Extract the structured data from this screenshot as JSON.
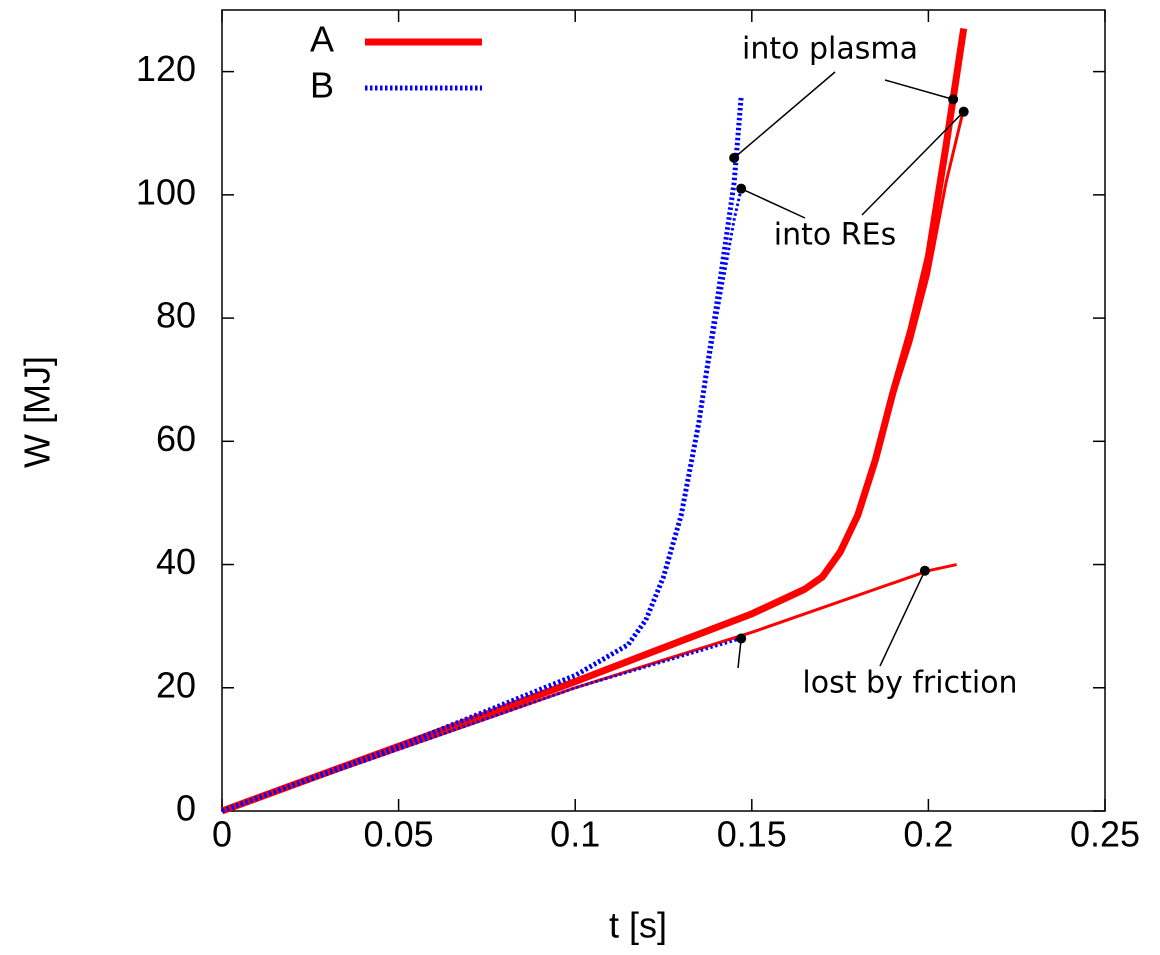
{
  "chart_data": {
    "type": "line",
    "x_label": "t [s]",
    "y_label": "W [MJ]",
    "xlim": [
      0,
      0.25
    ],
    "ylim": [
      0,
      130
    ],
    "xticks": [
      0,
      0.05,
      0.1,
      0.15,
      0.2,
      0.25
    ],
    "yticks": [
      0,
      20,
      40,
      60,
      80,
      100,
      120
    ],
    "legend": "top-left",
    "series": [
      {
        "name": "A",
        "color": "#ff0000",
        "style": "solid",
        "lines": [
          {
            "line_width": 7,
            "x": [
              0,
              0.05,
              0.1,
              0.15,
              0.165,
              0.17,
              0.175,
              0.18,
              0.185,
              0.19,
              0.195,
              0.2,
              0.205,
              0.21
            ],
            "values": [
              0,
              10.5,
              21,
              32,
              36,
              38,
              42,
              48,
              57,
              68,
              78,
              90,
              108,
              127
            ]
          },
          {
            "line_width": 3,
            "x": [
              0,
              0.05,
              0.1,
              0.15,
              0.165,
              0.17,
              0.175,
              0.18,
              0.185,
              0.19,
              0.195,
              0.2,
              0.205,
              0.21
            ],
            "values": [
              0,
              10.5,
              21,
              32,
              36,
              38,
              42,
              48,
              57,
              67,
              76,
              87,
              102,
              114
            ]
          },
          {
            "line_width": 3,
            "x": [
              0,
              0.05,
              0.1,
              0.15,
              0.17,
              0.19,
              0.2,
              0.208
            ],
            "values": [
              0,
              10,
              20,
              29,
              33,
              37,
              39,
              40
            ]
          }
        ]
      },
      {
        "name": "B",
        "color": "#0000ff",
        "style": "dotted",
        "lines": [
          {
            "line_width": 5,
            "x": [
              0,
              0.05,
              0.1,
              0.115,
              0.12,
              0.125,
              0.13,
              0.135,
              0.14,
              0.145,
              0.147
            ],
            "values": [
              0,
              10.5,
              22,
              27,
              31,
              38,
              48,
              63,
              82,
              102,
              116
            ]
          },
          {
            "line_width": 3,
            "x": [
              0,
              0.05,
              0.1,
              0.115,
              0.12,
              0.125,
              0.13,
              0.135,
              0.14,
              0.145,
              0.147
            ],
            "values": [
              0,
              10.5,
              22,
              27,
              31,
              38,
              48,
              63,
              80,
              96,
              101
            ]
          },
          {
            "line_width": 3,
            "x": [
              0,
              0.05,
              0.1,
              0.147
            ],
            "values": [
              0,
              10,
              20,
              28
            ]
          }
        ]
      }
    ],
    "annotations": [
      {
        "text": "into plasma",
        "x": [
          0.145,
          0.207
        ],
        "values": [
          106,
          115.5
        ]
      },
      {
        "text": "into REs",
        "x": [
          0.147,
          0.21
        ],
        "values": [
          101,
          113.5
        ]
      },
      {
        "text": "lost by friction",
        "x": [
          0.147,
          0.199
        ],
        "values": [
          28,
          39
        ]
      }
    ]
  }
}
